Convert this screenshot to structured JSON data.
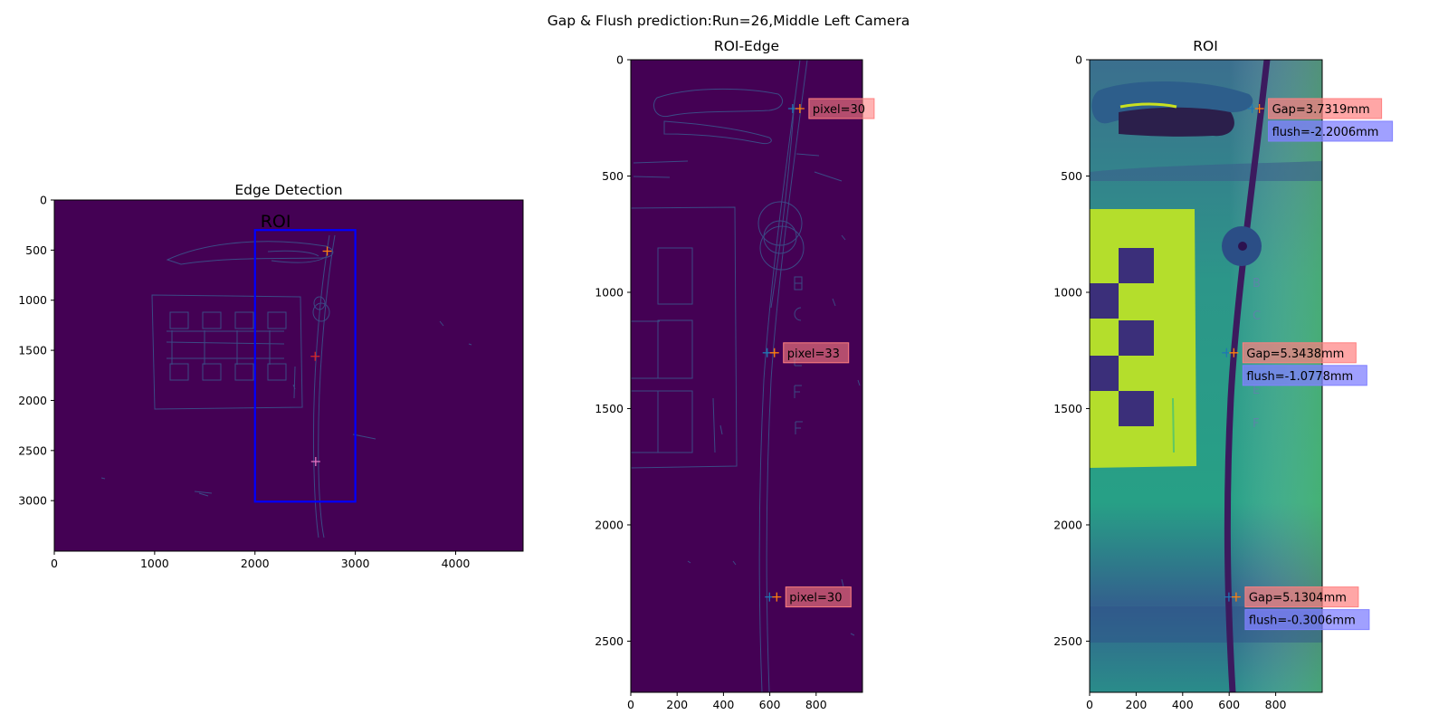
{
  "figure": {
    "suptitle": "Gap & Flush prediction:Run=26,Middle Left Camera"
  },
  "colors": {
    "edge_bg": "#440154",
    "edge_line": "#3b528b",
    "roi_box": "#0000ff",
    "gap_box": "#ff8080",
    "flush_box": "#8080ff",
    "roi_bg": "#2c8f89",
    "roi_bright": "#a0da39"
  },
  "chart_data": [
    {
      "type": "image",
      "title": "Edge Detection",
      "xlim": [
        0,
        4672
      ],
      "ylim": [
        3504,
        0
      ],
      "xticks": [
        0,
        1000,
        2000,
        3000,
        4000
      ],
      "yticks": [
        0,
        500,
        1000,
        1500,
        2000,
        2500,
        3000
      ],
      "roi_box": {
        "label": "ROI",
        "x0": 2000,
        "x1": 3000,
        "y0": 300,
        "y1": 3010
      },
      "markers": [
        {
          "x": 2720,
          "y": 510
        },
        {
          "x": 2600,
          "y": 1560
        },
        {
          "x": 2605,
          "y": 2610
        }
      ]
    },
    {
      "type": "image",
      "title": "ROI-Edge",
      "xlim": [
        0,
        1000
      ],
      "ylim": [
        2720,
        0
      ],
      "xticks": [
        0,
        200,
        400,
        600,
        800
      ],
      "yticks": [
        0,
        500,
        1000,
        1500,
        2000,
        2500
      ],
      "annotations": [
        {
          "x": 730,
          "y": 210,
          "text": "pixel=30"
        },
        {
          "x": 620,
          "y": 1260,
          "text": "pixel=33"
        },
        {
          "x": 630,
          "y": 2310,
          "text": "pixel=30"
        }
      ]
    },
    {
      "type": "image",
      "title": "ROI",
      "xlim": [
        0,
        1000
      ],
      "ylim": [
        2720,
        0
      ],
      "xticks": [
        0,
        200,
        400,
        600,
        800
      ],
      "yticks": [
        0,
        500,
        1000,
        1500,
        2000,
        2500
      ],
      "annotations": [
        {
          "x": 730,
          "y": 210,
          "gap": "Gap=3.7319mm",
          "flush": "flush=-2.2006mm"
        },
        {
          "x": 620,
          "y": 1260,
          "gap": "Gap=5.3438mm",
          "flush": "flush=-1.0778mm"
        },
        {
          "x": 630,
          "y": 2310,
          "gap": "Gap=5.1304mm",
          "flush": "flush=-0.3006mm"
        }
      ]
    }
  ]
}
